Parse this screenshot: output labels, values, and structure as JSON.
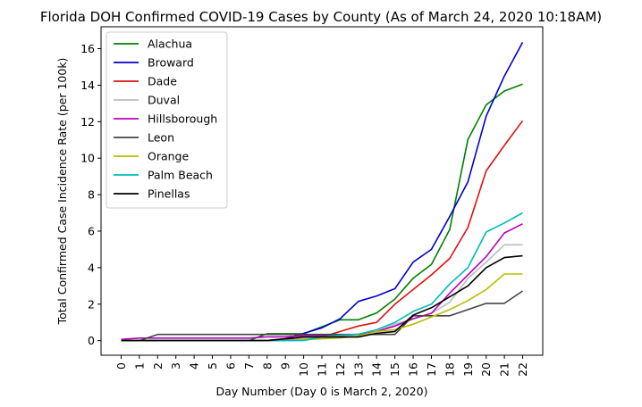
{
  "chart_data": {
    "type": "line",
    "title": "Florida DOH Confirmed COVID-19 Cases by County (As of March 24, 2020 10:18AM)",
    "xlabel": "Day Number (Day 0 is March 2, 2020)",
    "ylabel": "Total Confirmed Case Incidence Rate (per 100k)",
    "x": [
      0,
      1,
      2,
      3,
      4,
      5,
      6,
      7,
      8,
      9,
      10,
      11,
      12,
      13,
      14,
      15,
      16,
      17,
      18,
      19,
      20,
      21,
      22
    ],
    "xlim": [
      -1.1,
      23.1
    ],
    "ylim": [
      -0.8,
      17.2
    ],
    "yticks": [
      0,
      2,
      4,
      6,
      8,
      10,
      12,
      14,
      16
    ],
    "grid": false,
    "legend_position": "upper-left",
    "series": [
      {
        "name": "Alachua",
        "color": "#008000",
        "values": [
          0,
          0,
          0,
          0,
          0,
          0,
          0,
          0,
          0.38,
          0.38,
          0.38,
          0.76,
          1.14,
          1.14,
          1.52,
          2.28,
          3.42,
          4.18,
          6.08,
          11.02,
          12.92,
          13.68,
          14.06
        ]
      },
      {
        "name": "Broward",
        "color": "#0000cc",
        "values": [
          0,
          0,
          0,
          0,
          0,
          0,
          0,
          0,
          0,
          0.1,
          0.4,
          0.7,
          1.2,
          2.15,
          2.45,
          2.85,
          4.3,
          5.0,
          6.8,
          8.7,
          12.3,
          14.5,
          16.35
        ]
      },
      {
        "name": "Dade",
        "color": "#dd1111",
        "values": [
          0,
          0,
          0,
          0,
          0,
          0,
          0,
          0,
          0,
          0.05,
          0.1,
          0.2,
          0.5,
          0.8,
          1.0,
          2.0,
          2.8,
          3.6,
          4.5,
          6.2,
          9.3,
          10.7,
          12.05
        ]
      },
      {
        "name": "Duval",
        "color": "#bbbbbb",
        "values": [
          0,
          0,
          0,
          0,
          0,
          0,
          0,
          0,
          0,
          0,
          0.1,
          0.2,
          0.2,
          0.35,
          0.5,
          0.9,
          1.2,
          1.5,
          2.1,
          3.4,
          4.3,
          5.25,
          5.25
        ]
      },
      {
        "name": "Hillsborough",
        "color": "#bb00bb",
        "values": [
          0.07,
          0.14,
          0.14,
          0.14,
          0.14,
          0.14,
          0.14,
          0.14,
          0.21,
          0.21,
          0.28,
          0.28,
          0.28,
          0.35,
          0.5,
          0.8,
          1.2,
          1.5,
          2.6,
          3.6,
          4.6,
          5.9,
          6.4
        ]
      },
      {
        "name": "Leon",
        "color": "#444444",
        "values": [
          0,
          0,
          0.34,
          0.34,
          0.34,
          0.34,
          0.34,
          0.34,
          0.34,
          0.34,
          0.34,
          0.34,
          0.34,
          0.34,
          0.34,
          0.34,
          1.36,
          1.36,
          1.36,
          1.7,
          2.04,
          2.04,
          2.72
        ]
      },
      {
        "name": "Orange",
        "color": "#bbbb00",
        "values": [
          0,
          0,
          0,
          0,
          0,
          0,
          0,
          0,
          0,
          0,
          0.05,
          0.1,
          0.15,
          0.25,
          0.5,
          0.6,
          0.9,
          1.3,
          1.7,
          2.2,
          2.8,
          3.65,
          3.65
        ]
      },
      {
        "name": "Palm Beach",
        "color": "#00bbbb",
        "values": [
          0,
          0,
          0,
          0,
          0,
          0,
          0,
          0,
          0,
          0,
          0,
          0.2,
          0.3,
          0.35,
          0.6,
          1.0,
          1.6,
          2.0,
          3.1,
          4.0,
          5.95,
          6.45,
          7.0
        ]
      },
      {
        "name": "Pinellas",
        "color": "#000000",
        "values": [
          0,
          0,
          0,
          0,
          0,
          0,
          0,
          0,
          0,
          0.1,
          0.2,
          0.2,
          0.2,
          0.2,
          0.4,
          0.5,
          1.4,
          1.8,
          2.4,
          3.0,
          4.0,
          4.55,
          4.65
        ]
      }
    ]
  }
}
